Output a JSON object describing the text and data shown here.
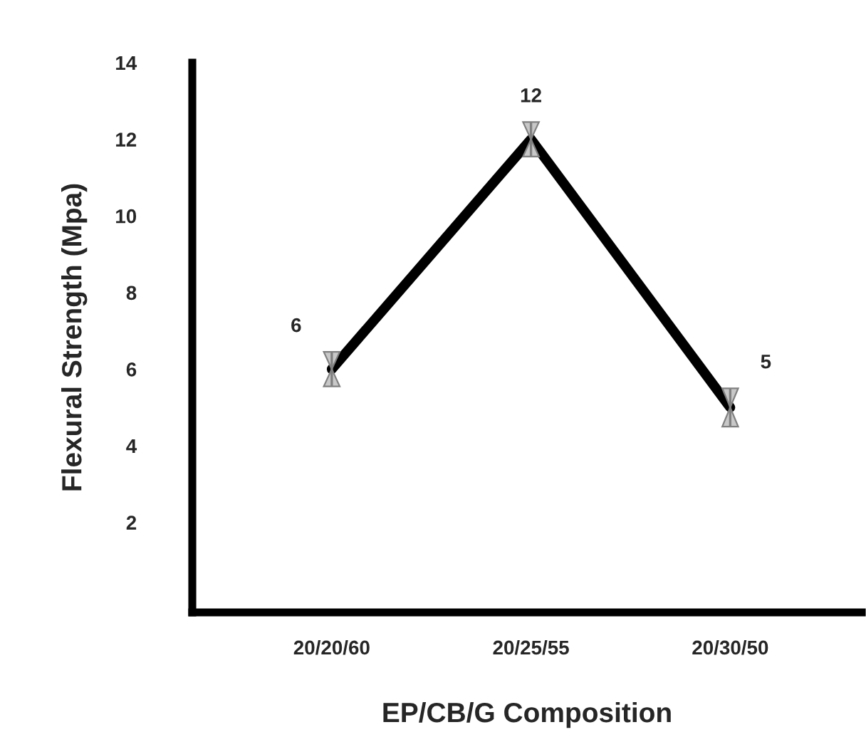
{
  "chart_data": {
    "type": "line",
    "xlabel": "EP/CB/G Composition",
    "ylabel": "Flexural Strength (Mpa)",
    "categories": [
      "20/20/60",
      "20/25/55",
      "20/30/50"
    ],
    "series": [
      {
        "color": "#000000",
        "values": [
          6,
          12,
          5
        ],
        "errors": [
          0.45,
          0.45,
          0.5
        ]
      }
    ],
    "ylim": [
      -0.35,
      14
    ],
    "yticks": [
      2,
      4,
      6,
      8,
      10,
      12,
      14
    ],
    "data_labels": true,
    "grid": false,
    "legend": false,
    "marker": "none",
    "line_style": "solid"
  }
}
